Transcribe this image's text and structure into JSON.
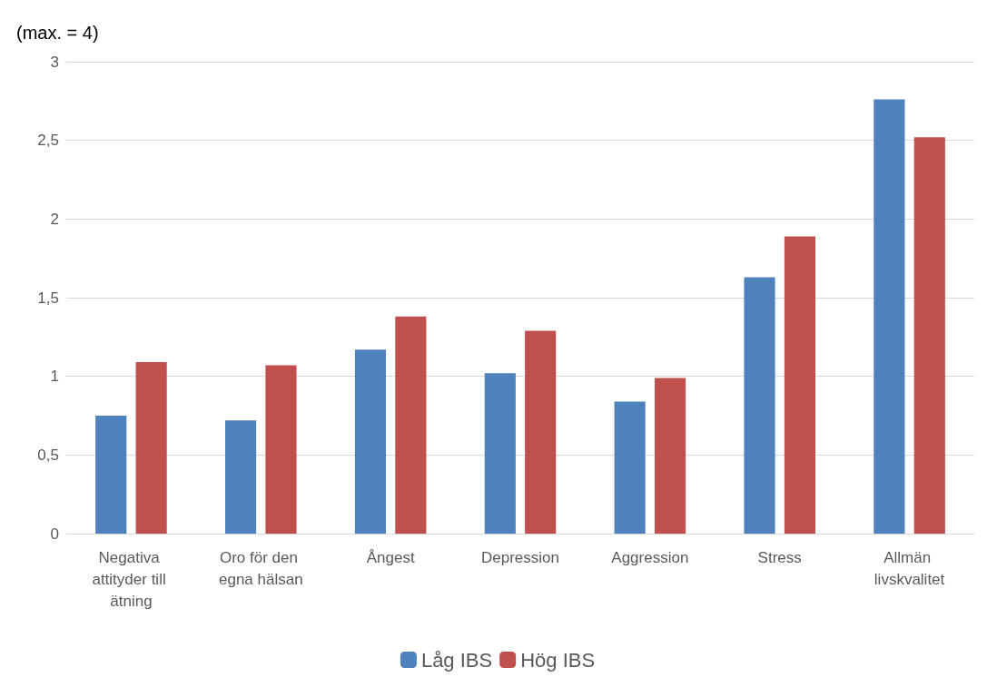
{
  "chart_data": {
    "type": "bar",
    "ylabel": "(max. = 4)",
    "categories": [
      "Negativa attityder till ätning",
      "Oro för den egna hälsan",
      "Ångest",
      "Depression",
      "Aggression",
      "Stress",
      "Allmän livskvalitet"
    ],
    "series": [
      {
        "name": "Låg IBS",
        "color": "#4f81bd",
        "values": [
          0.75,
          0.72,
          1.17,
          1.02,
          0.84,
          1.63,
          2.76
        ]
      },
      {
        "name": "Hög IBS",
        "color": "#c0504d",
        "values": [
          1.09,
          1.07,
          1.38,
          1.29,
          0.99,
          1.89,
          2.52
        ]
      }
    ],
    "ylim": [
      0,
      3
    ],
    "yticks": [
      0,
      {
        "value": 0.5,
        "label": "0,5"
      },
      1,
      {
        "value": 1.5,
        "label": "1,5"
      },
      2,
      {
        "value": 2.5,
        "label": "2,5"
      },
      3
    ],
    "grid": "y",
    "legend": "bottom"
  }
}
